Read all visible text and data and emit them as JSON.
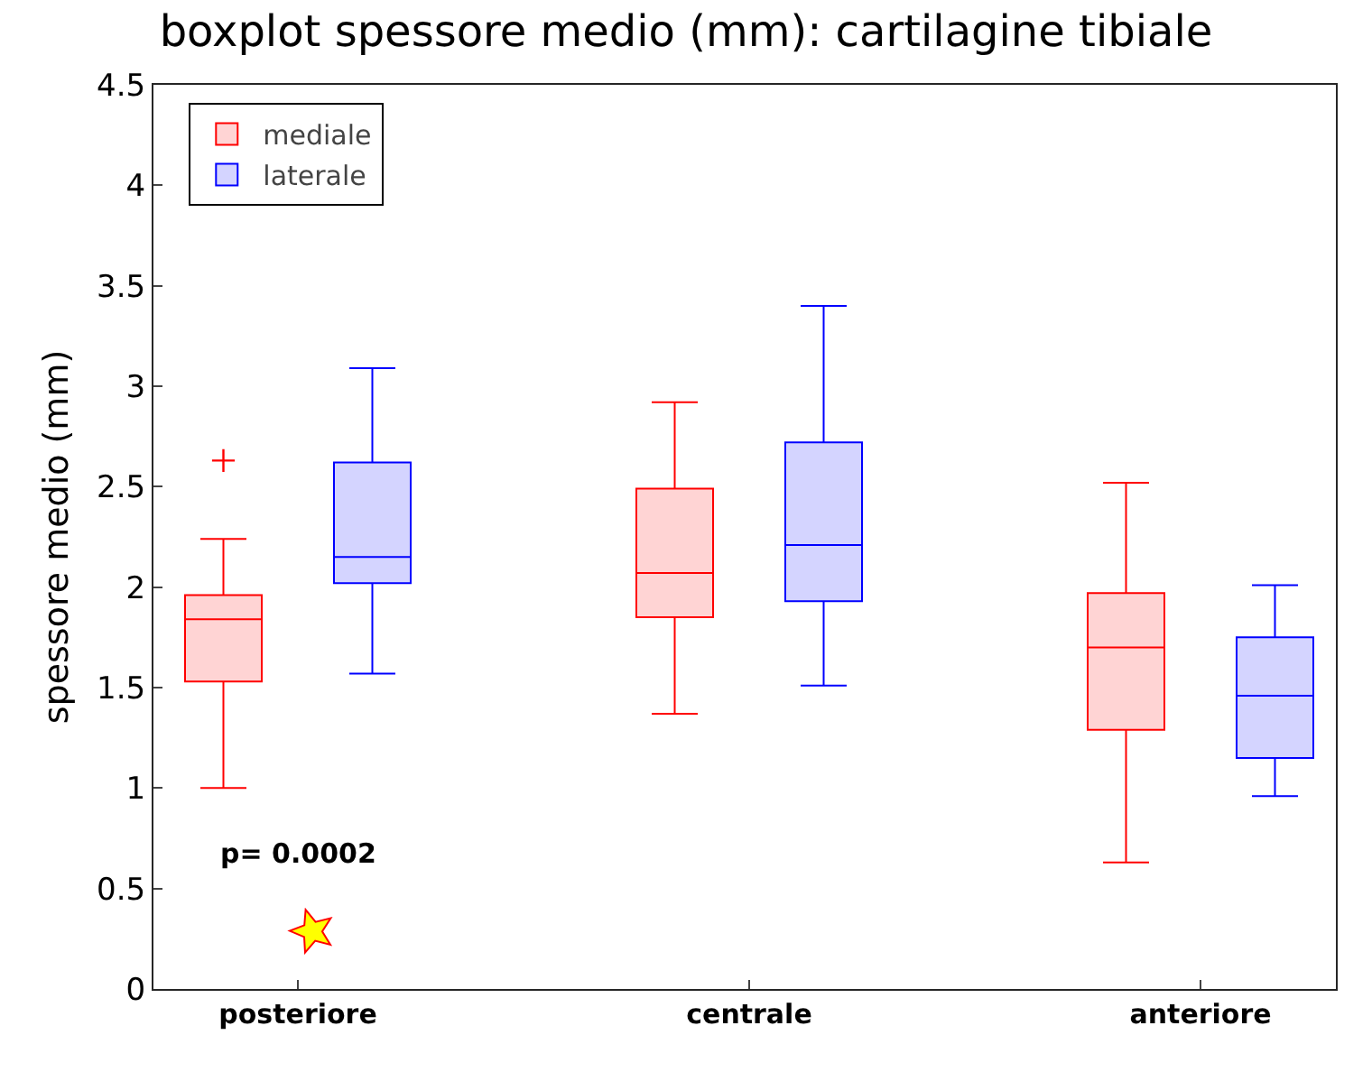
{
  "chart_data": {
    "type": "box",
    "title": "boxplot spessore medio (mm): cartilagine tibiale",
    "ylabel": "spessore medio (mm)",
    "categories": [
      "posteriore",
      "centrale",
      "anteriore"
    ],
    "series": [
      {
        "name": "mediale",
        "color": "#ff0000",
        "boxes": [
          {
            "low": 1.0,
            "q1": 1.53,
            "median": 1.84,
            "q3": 1.96,
            "high": 2.24,
            "outliers": [
              2.63
            ]
          },
          {
            "low": 1.37,
            "q1": 1.85,
            "median": 2.07,
            "q3": 2.49,
            "high": 2.92
          },
          {
            "low": 0.63,
            "q1": 1.29,
            "median": 1.7,
            "q3": 1.97,
            "high": 2.52
          }
        ]
      },
      {
        "name": "laterale",
        "color": "#0000ff",
        "boxes": [
          {
            "low": 1.57,
            "q1": 2.02,
            "median": 2.15,
            "q3": 2.62,
            "high": 3.09
          },
          {
            "low": 1.51,
            "q1": 1.93,
            "median": 2.21,
            "q3": 2.72,
            "high": 3.4
          },
          {
            "low": 0.96,
            "q1": 1.15,
            "median": 1.46,
            "q3": 1.75,
            "high": 2.01
          }
        ]
      }
    ],
    "ylim": [
      0,
      4.5
    ],
    "yticks": [
      0,
      0.5,
      1,
      1.5,
      2,
      2.5,
      3,
      3.5,
      4,
      4.5
    ],
    "grid": false,
    "legend": "top left",
    "annotations": [
      "p= 0.0002"
    ]
  }
}
